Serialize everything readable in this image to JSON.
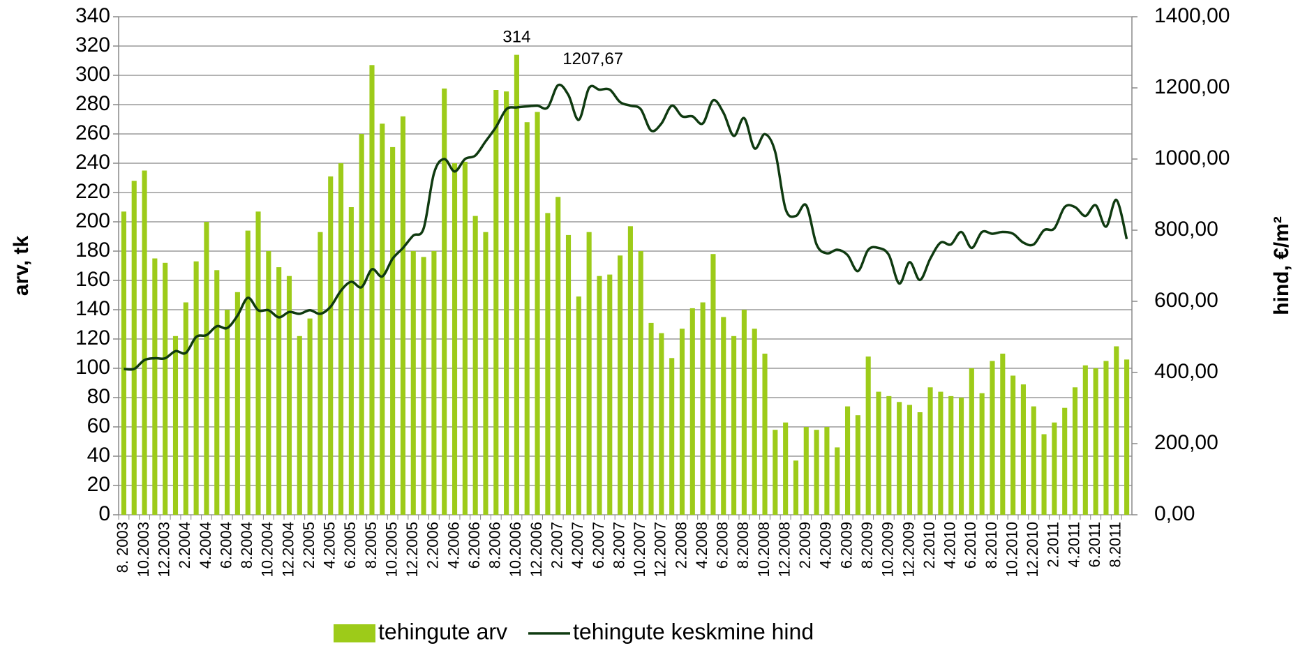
{
  "chart_data": {
    "type": "bar-line",
    "categories": [
      "8. 2003",
      null,
      "10.2003",
      null,
      "12.2003",
      null,
      "2.2004",
      null,
      "4.2004",
      null,
      "6.2004",
      null,
      "8.2004",
      null,
      "10.2004",
      null,
      "12.2004",
      null,
      "2.2005",
      null,
      "4.2005",
      null,
      "6.2005",
      null,
      "8.2005",
      null,
      "10.2005",
      null,
      "12.2005",
      null,
      "2.2006",
      null,
      "4.2006",
      null,
      "6.2006",
      null,
      "8.2006",
      null,
      "10.2006",
      null,
      "12.2006",
      null,
      "2.2007",
      null,
      "4.2007",
      null,
      "6.2007",
      null,
      "8.2007",
      null,
      "10.2007",
      null,
      "12.2007",
      null,
      "2.2008",
      null,
      "4.2008",
      null,
      "6.2008",
      null,
      "8.2008",
      null,
      "10.2008",
      null,
      "12.2008",
      null,
      "2.2009",
      null,
      "4.2009",
      null,
      "6.2009",
      null,
      "8.2009",
      null,
      "10.2009",
      null,
      "12.2009",
      null,
      "2.2010",
      null,
      "4.2010",
      null,
      "6.2010",
      null,
      "8.2010",
      null,
      "10.2010",
      null,
      "12.2010",
      null,
      "2.2011",
      null,
      "4.2011",
      null,
      "6.2011",
      null,
      "8.2011",
      null
    ],
    "series": [
      {
        "name": "tehingute arv",
        "type": "bar",
        "color": "#9dcb19",
        "values": [
          207,
          228,
          235,
          175,
          172,
          122,
          145,
          173,
          200,
          167,
          140,
          152,
          194,
          207,
          180,
          169,
          163,
          122,
          134,
          193,
          231,
          240,
          210,
          260,
          307,
          267,
          251,
          272,
          180,
          176,
          180,
          291,
          240,
          241,
          204,
          193,
          290,
          289,
          314,
          268,
          275,
          206,
          217,
          191,
          149,
          193,
          163,
          164,
          177,
          197,
          180,
          131,
          124,
          107,
          127,
          141,
          145,
          178,
          135,
          122,
          140,
          127,
          110,
          58,
          63,
          37,
          60,
          58,
          60,
          46,
          74,
          68,
          108,
          84,
          81,
          77,
          75,
          70,
          87,
          84,
          81,
          80,
          100,
          83,
          105,
          110,
          95,
          89,
          74,
          55,
          63,
          73,
          87,
          102,
          100,
          105,
          115,
          106
        ],
        "value_labels": [
          null,
          null,
          null,
          null,
          null,
          null,
          null,
          null,
          null,
          null,
          null,
          null,
          null,
          null,
          null,
          null,
          null,
          null,
          null,
          null,
          null,
          null,
          null,
          null,
          null,
          null,
          null,
          null,
          null,
          null,
          null,
          null,
          null,
          null,
          null,
          null,
          null,
          null,
          "314",
          null,
          null,
          null,
          null,
          null,
          null,
          null,
          null,
          null,
          null,
          null,
          null,
          null,
          null,
          null,
          null,
          null,
          null,
          null,
          null,
          null,
          null,
          null,
          null,
          null,
          null,
          null,
          null,
          null,
          null,
          null,
          null,
          null,
          null,
          null,
          null,
          null,
          null,
          null,
          null,
          null,
          null,
          null,
          null,
          null,
          null,
          null,
          null,
          null,
          null,
          null,
          null,
          null,
          null,
          null,
          null,
          null,
          null,
          null
        ]
      },
      {
        "name": "tehingute keskmine hind",
        "type": "line",
        "axis": "y2",
        "color": "#0f3a10",
        "values": [
          410,
          410,
          435,
          440,
          440,
          460,
          455,
          500,
          505,
          530,
          525,
          560,
          610,
          575,
          575,
          555,
          570,
          565,
          575,
          565,
          585,
          630,
          655,
          640,
          690,
          670,
          720,
          750,
          785,
          805,
          960,
          1000,
          965,
          1000,
          1010,
          1050,
          1090,
          1140,
          1145,
          1148,
          1150,
          1145,
          1207.67,
          1180,
          1110,
          1200,
          1195,
          1195,
          1160,
          1150,
          1140,
          1080,
          1100,
          1150,
          1120,
          1120,
          1100,
          1165,
          1130,
          1065,
          1115,
          1030,
          1070,
          1020,
          860,
          840,
          870,
          760,
          735,
          745,
          730,
          685,
          745,
          750,
          730,
          650,
          710,
          660,
          720,
          765,
          760,
          795,
          750,
          795,
          790,
          795,
          790,
          765,
          760,
          800,
          805,
          865,
          865,
          840,
          870,
          810,
          885,
          775
        ],
        "value_labels": [
          null,
          null,
          null,
          null,
          null,
          null,
          null,
          null,
          null,
          null,
          null,
          null,
          null,
          null,
          null,
          null,
          null,
          null,
          null,
          null,
          null,
          null,
          null,
          null,
          null,
          null,
          null,
          null,
          null,
          null,
          null,
          null,
          null,
          null,
          null,
          null,
          null,
          null,
          null,
          null,
          null,
          null,
          "1207,67",
          null,
          null,
          null,
          null,
          null,
          null,
          null,
          null,
          null,
          null,
          null,
          null,
          null,
          null,
          null,
          null,
          null,
          null,
          null,
          null,
          null,
          null,
          null,
          null,
          null,
          null,
          null,
          null,
          null,
          null,
          null,
          null,
          null,
          null,
          null,
          null,
          null,
          null,
          null,
          null,
          null,
          null,
          null,
          null,
          null,
          null,
          null,
          null,
          null,
          null,
          null,
          null,
          null,
          null,
          null
        ]
      }
    ],
    "y_label": "arv, tk",
    "y2_label": "hind, €/m²",
    "ylim": [
      0,
      340
    ],
    "yticks": [
      0,
      20,
      40,
      60,
      80,
      100,
      120,
      140,
      160,
      180,
      200,
      220,
      240,
      260,
      280,
      300,
      320,
      340
    ],
    "y2lim": [
      0,
      1400
    ],
    "y2ticks": [
      {
        "value": 0,
        "label": "0,00"
      },
      {
        "value": 200,
        "label": "200,00"
      },
      {
        "value": 400,
        "label": "400,00"
      },
      {
        "value": 600,
        "label": "600,00"
      },
      {
        "value": 800,
        "label": "800,00"
      },
      {
        "value": 1000,
        "label": "1000,00"
      },
      {
        "value": 1200,
        "label": "1200,00"
      },
      {
        "value": 1400,
        "label": "1400,00"
      }
    ],
    "grid": true,
    "legend": "bottom"
  }
}
